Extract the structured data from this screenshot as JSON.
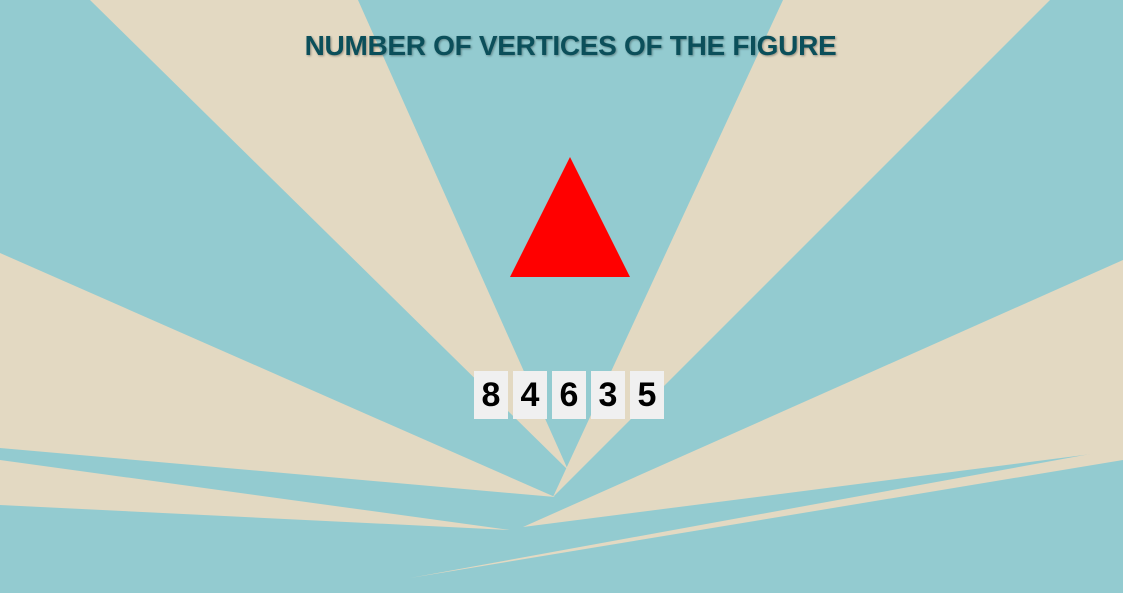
{
  "game": {
    "title": "NUMBER OF VERTICES OF THE FIGURE",
    "figure": {
      "shape": "triangle",
      "color": "#ff0000"
    },
    "options": [
      "8",
      "4",
      "6",
      "3",
      "5"
    ]
  },
  "colors": {
    "background_teal": "#93cbd0",
    "ray_beige": "#e3d9c2",
    "title": "#0b4f5a",
    "option_bg": "#f0f0f0"
  }
}
